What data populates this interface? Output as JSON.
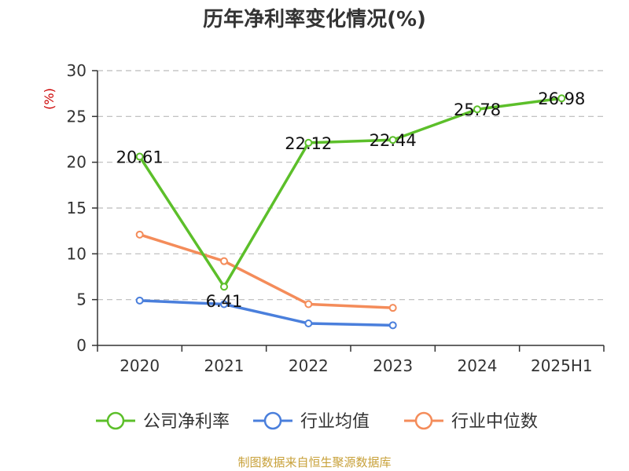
{
  "title": "历年净利率变化情况(%)",
  "source": "制图数据来自恒生聚源数据库",
  "colors": {
    "unit": "#cc0000",
    "source": "#c8a13a",
    "axis": "#333333",
    "grid": "#bbbbbb"
  },
  "chart_data": {
    "type": "line",
    "title": "历年净利率变化情况(%)",
    "ylabel": "(%)",
    "categories": [
      "2020",
      "2021",
      "2022",
      "2023",
      "2024",
      "2025H1"
    ],
    "ylim": [
      0,
      30
    ],
    "yticks": [
      0,
      5,
      10,
      15,
      20,
      25,
      30
    ],
    "grid": true,
    "legend_position": "bottom",
    "series": [
      {
        "name": "公司净利率",
        "color": "#5cbf2a",
        "values": [
          20.61,
          6.41,
          22.12,
          22.44,
          25.78,
          26.98
        ],
        "labels": [
          "20.61",
          "6.41",
          "22.12",
          "22.44",
          "25.78",
          "26.98"
        ]
      },
      {
        "name": "行业均值",
        "color": "#4a7fdc",
        "values": [
          4.9,
          4.5,
          2.4,
          2.2,
          null,
          null
        ],
        "labels": null
      },
      {
        "name": "行业中位数",
        "color": "#f48c5a",
        "values": [
          12.1,
          9.2,
          4.5,
          4.1,
          null,
          null
        ],
        "labels": null
      }
    ]
  }
}
